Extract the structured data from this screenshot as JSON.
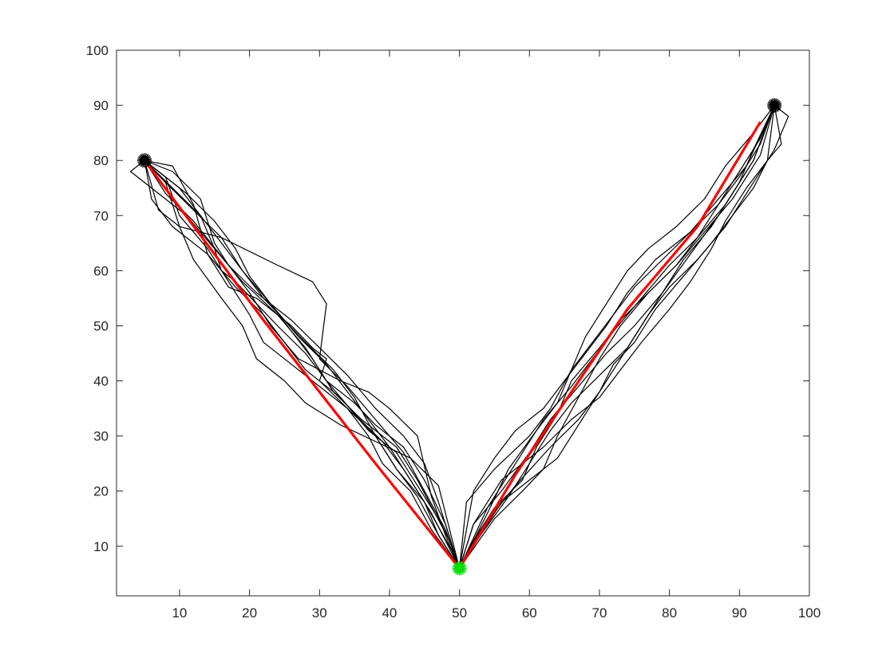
{
  "chart_data": {
    "type": "line",
    "title": "",
    "xlabel": "",
    "ylabel": "",
    "xlim": [
      1,
      100
    ],
    "ylim": [
      1,
      100
    ],
    "xticks": [
      10,
      20,
      30,
      40,
      50,
      60,
      70,
      80,
      90,
      100
    ],
    "yticks": [
      10,
      20,
      30,
      40,
      50,
      60,
      70,
      80,
      90,
      100
    ],
    "grid": false,
    "legend": "none",
    "colors": {
      "trajectory": "#000000",
      "optimal": "#ff0000",
      "goal": "#00e000",
      "start": "#000000"
    },
    "start_points": [
      {
        "x": 5,
        "y": 80
      },
      {
        "x": 95,
        "y": 90
      }
    ],
    "goal_point": {
      "x": 50,
      "y": 6
    },
    "optimal_paths": [
      {
        "x": [
          5,
          15,
          22,
          30,
          38,
          50
        ],
        "y": [
          80,
          63,
          51,
          38,
          25,
          6
        ]
      },
      {
        "x": [
          50,
          58,
          66,
          74,
          84,
          93
        ],
        "y": [
          6,
          23,
          38,
          53,
          68,
          87
        ]
      }
    ],
    "trajectories": [
      {
        "x": [
          5,
          8,
          12,
          16,
          19,
          23,
          27,
          31,
          34,
          37,
          40,
          43,
          46,
          48,
          50
        ],
        "y": [
          80,
          76,
          71,
          66,
          60,
          54,
          48,
          43,
          38,
          33,
          28,
          22,
          16,
          11,
          6
        ]
      },
      {
        "x": [
          5,
          6,
          9,
          14,
          18,
          22,
          25,
          28,
          33,
          37,
          41,
          44,
          47,
          49,
          50
        ],
        "y": [
          80,
          73,
          68,
          63,
          57,
          52,
          47,
          42,
          37,
          31,
          27,
          21,
          15,
          10,
          6
        ]
      },
      {
        "x": [
          5,
          3,
          7,
          11,
          15,
          19,
          24,
          28,
          31,
          35,
          39,
          42,
          45,
          47,
          50
        ],
        "y": [
          80,
          78,
          74,
          70,
          64,
          58,
          52,
          46,
          40,
          34,
          29,
          24,
          18,
          12,
          6
        ]
      },
      {
        "x": [
          5,
          9,
          12,
          14,
          17,
          21,
          26,
          29,
          31,
          30,
          34,
          38,
          41,
          45,
          49,
          50
        ],
        "y": [
          80,
          79,
          72,
          63,
          57,
          55,
          50,
          46,
          44,
          40,
          35,
          30,
          24,
          18,
          9,
          6
        ]
      },
      {
        "x": [
          5,
          7,
          10,
          16,
          24,
          29,
          31,
          30,
          34,
          38,
          42,
          45,
          48,
          50
        ],
        "y": [
          80,
          71,
          68,
          66,
          61,
          58,
          54,
          44,
          39,
          33,
          27,
          20,
          13,
          6
        ]
      },
      {
        "x": [
          5,
          8,
          10,
          14,
          17,
          20,
          22,
          26,
          30,
          34,
          37,
          39,
          43,
          46,
          50
        ],
        "y": [
          80,
          77,
          70,
          64,
          58,
          52,
          47,
          43,
          39,
          35,
          30,
          25,
          20,
          13,
          6
        ]
      },
      {
        "x": [
          5,
          9,
          13,
          15,
          17,
          20,
          23,
          27,
          33,
          37,
          40,
          44,
          46,
          48,
          50
        ],
        "y": [
          80,
          78,
          73,
          65,
          61,
          56,
          50,
          44,
          40,
          38,
          35,
          30,
          19,
          12,
          6
        ]
      },
      {
        "x": [
          5,
          10,
          13,
          15,
          16,
          18,
          21,
          24,
          28,
          31,
          35,
          38,
          42,
          45,
          48,
          50
        ],
        "y": [
          80,
          75,
          70,
          64,
          60,
          58,
          54,
          50,
          45,
          40,
          36,
          32,
          28,
          22,
          14,
          6
        ]
      },
      {
        "x": [
          5,
          8,
          10,
          12,
          16,
          19,
          21,
          25,
          28,
          33,
          38,
          43,
          47,
          50
        ],
        "y": [
          80,
          76,
          68,
          62,
          55,
          50,
          44,
          40,
          36,
          32,
          29,
          26,
          21,
          6
        ]
      },
      {
        "x": [
          5,
          7,
          11,
          15,
          18,
          20,
          23,
          26,
          29,
          32,
          36,
          41,
          44,
          49,
          50
        ],
        "y": [
          80,
          78,
          74,
          69,
          64,
          59,
          54,
          49,
          44,
          38,
          33,
          28,
          22,
          10,
          6
        ]
      },
      {
        "x": [
          5,
          9,
          13,
          16,
          19,
          22,
          25,
          28,
          32,
          35,
          38,
          41,
          44,
          47,
          50
        ],
        "y": [
          80,
          75,
          70,
          65,
          60,
          55,
          51,
          47,
          42,
          37,
          30,
          24,
          19,
          12,
          6
        ]
      },
      {
        "x": [
          5,
          8,
          12,
          17,
          21,
          26,
          30,
          34,
          38,
          42,
          45,
          47,
          49,
          50
        ],
        "y": [
          80,
          74,
          69,
          61,
          56,
          51,
          46,
          41,
          35,
          30,
          25,
          18,
          10,
          6
        ]
      },
      {
        "x": [
          50,
          52,
          56,
          62,
          66,
          70,
          73,
          76,
          80,
          83,
          86,
          88,
          91,
          94,
          96,
          95
        ],
        "y": [
          6,
          14,
          22,
          28,
          33,
          37,
          42,
          47,
          53,
          58,
          64,
          69,
          75,
          80,
          83,
          90
        ]
      },
      {
        "x": [
          50,
          51,
          55,
          60,
          63,
          66,
          69,
          72,
          75,
          79,
          83,
          87,
          90,
          93,
          95
        ],
        "y": [
          6,
          18,
          24,
          30,
          35,
          42,
          47,
          52,
          57,
          62,
          67,
          72,
          77,
          83,
          90
        ]
      },
      {
        "x": [
          50,
          54,
          57,
          61,
          64,
          66,
          68,
          71,
          74,
          77,
          81,
          85,
          88,
          92,
          95
        ],
        "y": [
          6,
          16,
          24,
          31,
          36,
          42,
          48,
          54,
          60,
          64,
          68,
          73,
          79,
          85,
          90
        ]
      },
      {
        "x": [
          50,
          52,
          55,
          59,
          61,
          64,
          66,
          70,
          73,
          77,
          81,
          84,
          87,
          90,
          93,
          95
        ],
        "y": [
          6,
          11,
          17,
          22,
          28,
          34,
          40,
          46,
          51,
          56,
          61,
          66,
          72,
          78,
          84,
          90
        ]
      },
      {
        "x": [
          50,
          53,
          58,
          63,
          67,
          70,
          73,
          76,
          79,
          82,
          86,
          89,
          92,
          95
        ],
        "y": [
          6,
          13,
          21,
          28,
          33,
          38,
          44,
          50,
          56,
          62,
          68,
          74,
          80,
          90
        ]
      },
      {
        "x": [
          50,
          55,
          59,
          62,
          64,
          67,
          70,
          73,
          77,
          81,
          85,
          89,
          93,
          95
        ],
        "y": [
          6,
          15,
          20,
          24,
          30,
          37,
          44,
          50,
          56,
          61,
          67,
          73,
          81,
          90
        ]
      },
      {
        "x": [
          50,
          52,
          55,
          58,
          62,
          65,
          68,
          71,
          74,
          78,
          83,
          87,
          91,
          95
        ],
        "y": [
          6,
          20,
          26,
          31,
          35,
          40,
          45,
          50,
          56,
          62,
          67,
          73,
          79,
          90
        ]
      },
      {
        "x": [
          50,
          56,
          60,
          64,
          67,
          70,
          72,
          75,
          78,
          82,
          86,
          89,
          92,
          94,
          95
        ],
        "y": [
          6,
          18,
          22,
          26,
          32,
          38,
          43,
          47,
          53,
          59,
          65,
          70,
          75,
          80,
          90
        ]
      },
      {
        "x": [
          50,
          53,
          57,
          60,
          63,
          66,
          70,
          74,
          77,
          80,
          84,
          88,
          91,
          95,
          97,
          95
        ],
        "y": [
          6,
          12,
          19,
          25,
          31,
          36,
          41,
          46,
          52,
          57,
          62,
          68,
          74,
          82,
          88,
          90
        ]
      },
      {
        "x": [
          50,
          52,
          56,
          60,
          63,
          67,
          71,
          75,
          79,
          83,
          87,
          90,
          92,
          95
        ],
        "y": [
          6,
          14,
          20,
          27,
          33,
          39,
          45,
          50,
          56,
          63,
          70,
          76,
          82,
          90
        ]
      },
      {
        "x": [
          50,
          54,
          58,
          62,
          66,
          69,
          72,
          76,
          80,
          84,
          88,
          92,
          95
        ],
        "y": [
          6,
          17,
          25,
          33,
          39,
          44,
          49,
          55,
          61,
          66,
          72,
          80,
          90
        ]
      }
    ]
  }
}
